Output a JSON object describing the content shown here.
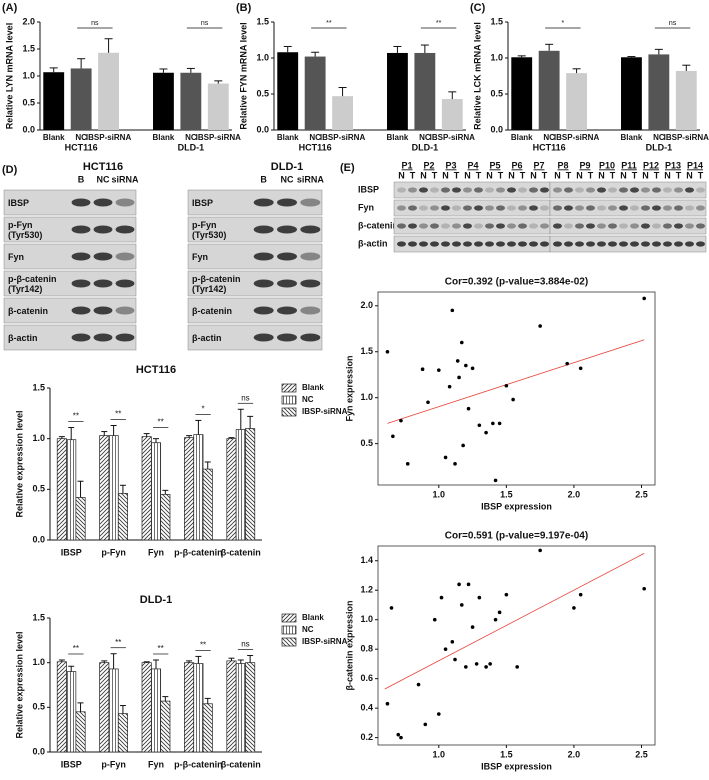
{
  "chart_data": [
    {
      "type": "bar",
      "panel": "(A)",
      "ylabel": "Relative LYN mRNA level",
      "categories": [
        "Blank",
        "NC",
        "IBSP-siRNA",
        "Blank",
        "NC",
        "IBSP-siRNA"
      ],
      "groups": [
        "HCT116",
        "DLD-1"
      ],
      "values": [
        1.07,
        1.14,
        1.43,
        1.06,
        1.06,
        0.86
      ],
      "errors": [
        0.08,
        0.18,
        0.26,
        0.07,
        0.08,
        0.05
      ],
      "colors": [
        "#000000",
        "#555555",
        "#cccccc",
        "#000000",
        "#555555",
        "#cccccc"
      ],
      "annotations": [
        "ns",
        "ns"
      ],
      "ylim": [
        0,
        2
      ],
      "yticks": [
        {
          "value": 0,
          "label": "0.0"
        },
        0.5,
        {
          "value": 1,
          "label": "1.0"
        },
        1.5,
        {
          "value": 2,
          "label": "2.0"
        }
      ]
    },
    {
      "type": "bar",
      "panel": "(B)",
      "ylabel": "Relative FYN mRNA level",
      "categories": [
        "Blank",
        "NC",
        "IBSP-siRNA",
        "Blank",
        "NC",
        "IBSP-siRNA"
      ],
      "groups": [
        "HCT116",
        "DLD-1"
      ],
      "values": [
        1.08,
        1.02,
        0.47,
        1.07,
        1.07,
        0.43
      ],
      "errors": [
        0.08,
        0.06,
        0.12,
        0.09,
        0.11,
        0.1
      ],
      "colors": [
        "#000000",
        "#555555",
        "#cccccc",
        "#000000",
        "#555555",
        "#cccccc"
      ],
      "annotations": [
        "**",
        "**"
      ],
      "ylim": [
        0,
        1.5
      ],
      "yticks": [
        {
          "value": 0,
          "label": "0.0"
        },
        0.5,
        {
          "value": 1,
          "label": "1.0"
        },
        1.5
      ]
    },
    {
      "type": "bar",
      "panel": "(C)",
      "ylabel": "Relative LCK mRNA level",
      "categories": [
        "Blank",
        "NC",
        "IBSP-siRNA",
        "Blank",
        "NC",
        "IBSP-siRNA"
      ],
      "groups": [
        "HCT116",
        "DLD-1"
      ],
      "values": [
        1.01,
        1.1,
        0.79,
        1.01,
        1.05,
        0.82
      ],
      "errors": [
        0.02,
        0.09,
        0.06,
        0.01,
        0.07,
        0.08
      ],
      "colors": [
        "#000000",
        "#555555",
        "#cccccc",
        "#000000",
        "#555555",
        "#cccccc"
      ],
      "annotations": [
        "*",
        "ns"
      ],
      "ylim": [
        0,
        1.5
      ],
      "yticks": [
        {
          "value": 0,
          "label": "0.0"
        },
        0.5,
        {
          "value": 1,
          "label": "1.0"
        },
        1.5
      ]
    },
    {
      "type": "grouped_bar",
      "title": "HCT116",
      "ylabel": "Relative expression level",
      "categories": [
        "IBSP",
        "p-Fyn",
        "Fyn",
        "p-β-catenin",
        "β-catenin"
      ],
      "series": [
        {
          "name": "Blank",
          "hatch": "diagonal",
          "values": [
            1.0,
            1.03,
            1.02,
            1.01,
            1.0
          ],
          "errors": [
            0.02,
            0.04,
            0.03,
            0.02,
            0.01
          ]
        },
        {
          "name": "NC",
          "hatch": "vertical",
          "values": [
            0.99,
            1.03,
            0.96,
            1.04,
            1.09
          ],
          "errors": [
            0.12,
            0.1,
            0.04,
            0.14,
            0.2
          ]
        },
        {
          "name": "IBSP-siRNA",
          "hatch": "backdiagonal",
          "values": [
            0.42,
            0.46,
            0.45,
            0.7,
            1.1
          ],
          "errors": [
            0.16,
            0.08,
            0.04,
            0.07,
            0.12
          ]
        }
      ],
      "annotations": [
        "**",
        "**",
        "**",
        "*",
        "ns"
      ],
      "ylim": [
        0,
        1.5
      ],
      "yticks": [
        {
          "value": 0,
          "label": "0.0"
        },
        0.5,
        {
          "value": 1,
          "label": "1.0"
        },
        1.5
      ]
    },
    {
      "type": "grouped_bar",
      "title": "DLD-1",
      "ylabel": "Relative expression level",
      "categories": [
        "IBSP",
        "p-Fyn",
        "Fyn",
        "p-β-catenin",
        "β-catenin"
      ],
      "series": [
        {
          "name": "Blank",
          "hatch": "diagonal",
          "values": [
            1.01,
            1.0,
            1.0,
            1.0,
            1.02
          ],
          "errors": [
            0.02,
            0.02,
            0.01,
            0.02,
            0.03
          ]
        },
        {
          "name": "NC",
          "hatch": "vertical",
          "values": [
            0.9,
            0.93,
            0.93,
            0.99,
            0.99
          ],
          "errors": [
            0.06,
            0.17,
            0.1,
            0.08,
            0.04
          ]
        },
        {
          "name": "IBSP-siRNA",
          "hatch": "backdiagonal",
          "values": [
            0.45,
            0.43,
            0.57,
            0.54,
            1.0
          ],
          "errors": [
            0.1,
            0.09,
            0.05,
            0.06,
            0.08
          ]
        }
      ],
      "annotations": [
        "**",
        "**",
        "**",
        "**",
        "ns"
      ],
      "ylim": [
        0,
        1.5
      ],
      "yticks": [
        {
          "value": 0,
          "label": "0.0"
        },
        0.5,
        {
          "value": 1,
          "label": "1.0"
        },
        1.5
      ]
    },
    {
      "type": "scatter",
      "title": "Cor=0.392 (p-value=3.884e-02)",
      "xlabel": "IBSP expression",
      "ylabel": "Fyn expression",
      "x": [
        0.62,
        0.66,
        0.72,
        0.77,
        0.88,
        0.92,
        1.0,
        1.05,
        1.08,
        1.1,
        1.12,
        1.14,
        1.15,
        1.17,
        1.18,
        1.2,
        1.22,
        1.25,
        1.3,
        1.35,
        1.4,
        1.42,
        1.45,
        1.5,
        1.55,
        1.75,
        1.95,
        2.05,
        2.52
      ],
      "y": [
        1.5,
        0.58,
        0.75,
        0.28,
        1.31,
        0.95,
        1.3,
        0.35,
        1.12,
        1.95,
        0.28,
        1.4,
        1.22,
        1.6,
        0.48,
        1.35,
        0.88,
        1.32,
        0.7,
        0.62,
        0.72,
        0.1,
        0.72,
        1.13,
        0.98,
        1.78,
        1.37,
        1.32,
        2.08
      ],
      "color": "#000000",
      "trend_line": {
        "x": [
          0.62,
          2.52
        ],
        "y": [
          0.72,
          1.63
        ],
        "color": "#e8423a"
      },
      "xlim": [
        0.55,
        2.6
      ],
      "xticks": [
        {
          "value": 1,
          "label": "1.0"
        },
        1.5,
        {
          "value": 2,
          "label": "2.0"
        },
        2.5
      ],
      "ylim": [
        0.05,
        2.15
      ],
      "yticks": [
        0.5,
        {
          "value": 1,
          "label": "1.0"
        },
        1.5,
        {
          "value": 2,
          "label": "2.0"
        }
      ]
    },
    {
      "type": "scatter",
      "title": "Cor=0.591 (p-value=9.197e-04)",
      "xlabel": "IBSP expression",
      "ylabel": "β-catenin expression",
      "x": [
        0.62,
        0.65,
        0.7,
        0.72,
        0.85,
        0.9,
        0.97,
        1.0,
        1.02,
        1.05,
        1.1,
        1.12,
        1.15,
        1.17,
        1.2,
        1.22,
        1.25,
        1.28,
        1.3,
        1.35,
        1.38,
        1.42,
        1.45,
        1.5,
        1.58,
        1.75,
        2.0,
        2.05,
        2.52
      ],
      "y": [
        0.43,
        1.08,
        0.22,
        0.2,
        0.56,
        0.29,
        1.0,
        0.36,
        1.15,
        0.8,
        0.85,
        0.73,
        1.24,
        1.1,
        0.68,
        1.24,
        0.95,
        0.7,
        1.15,
        0.68,
        0.7,
        1.0,
        1.05,
        1.17,
        0.68,
        1.47,
        1.08,
        1.17,
        1.21
      ],
      "color": "#000000",
      "trend_line": {
        "x": [
          0.6,
          2.52
        ],
        "y": [
          0.53,
          1.45
        ],
        "color": "#e8423a"
      },
      "xlim": [
        0.55,
        2.6
      ],
      "xticks": [
        {
          "value": 1,
          "label": "1.0"
        },
        1.5,
        {
          "value": 2,
          "label": "2.0"
        },
        2.5
      ],
      "ylim": [
        0.15,
        1.5
      ],
      "yticks": [
        0.2,
        0.4,
        0.6,
        0.8,
        {
          "value": 1,
          "label": "1.0"
        },
        1.2,
        1.4
      ]
    }
  ],
  "blot_d": {
    "panel": "(D)",
    "columns": [
      "B",
      "NC",
      "siRNA"
    ],
    "blocks": [
      {
        "title": "HCT116",
        "rows": [
          [
            "IBSP"
          ],
          [
            "p-Fyn",
            "(Tyr530)"
          ],
          [
            "Fyn"
          ],
          [
            "p-β-catenin",
            "(Tyr142)"
          ],
          [
            "β-catenin"
          ],
          [
            "β-actin"
          ]
        ]
      },
      {
        "title": "DLD-1",
        "rows": [
          [
            "IBSP"
          ],
          [
            "p-Fyn",
            "(Tyr530)"
          ],
          [
            "Fyn"
          ],
          [
            "p-β-catenin",
            "(Tyr142)"
          ],
          [
            "β-catenin"
          ],
          [
            "β-actin"
          ]
        ]
      }
    ]
  },
  "blot_e": {
    "panel": "(E)",
    "patients": [
      "P1",
      "P2",
      "P3",
      "P4",
      "P5",
      "P6",
      "P7",
      "P8",
      "P9",
      "P10",
      "P11",
      "P12",
      "P13",
      "P14"
    ],
    "lanes": [
      "N",
      "T"
    ],
    "rows": [
      "IBSP",
      "Fyn",
      "β-catenin",
      "β-actin"
    ]
  }
}
